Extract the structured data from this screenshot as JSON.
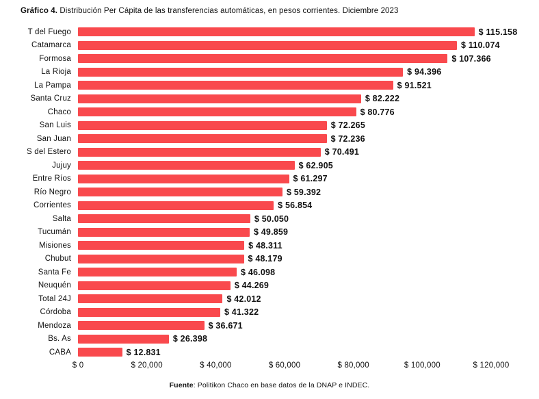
{
  "title": {
    "prefix": "Gráfico 4.",
    "rest": " Distribución Per Cápita de las transferencias automáticas, en pesos corrientes. Diciembre 2023"
  },
  "footer": {
    "prefix": "Fuente",
    "rest": ": Politikon Chaco en base datos de la DNAP e INDEC."
  },
  "colors": {
    "bar": "#f9494d",
    "text": "#111111"
  },
  "chart_data": {
    "type": "bar",
    "orientation": "horizontal",
    "title": "Gráfico 4. Distribución Per Cápita de las transferencias automáticas, en pesos corrientes. Diciembre 2023",
    "xlabel": "",
    "ylabel": "",
    "xlim": [
      0,
      120000
    ],
    "grid": false,
    "legend": false,
    "categories": [
      "T del Fuego",
      "Catamarca",
      "Formosa",
      "La Rioja",
      "La Pampa",
      "Santa Cruz",
      "Chaco",
      "San Luis",
      "San Juan",
      "S del Estero",
      "Jujuy",
      "Entre Ríos",
      "Río Negro",
      "Corrientes",
      "Salta",
      "Tucumán",
      "Misiones",
      "Chubut",
      "Santa Fe",
      "Neuquén",
      "Total 24J",
      "Córdoba",
      "Mendoza",
      "Bs. As",
      "CABA"
    ],
    "values": [
      115158,
      110074,
      107366,
      94396,
      91521,
      82222,
      80776,
      72265,
      72236,
      70491,
      62905,
      61297,
      59392,
      56854,
      50050,
      49859,
      48311,
      48179,
      46098,
      44269,
      42012,
      41322,
      36671,
      26398,
      12831
    ],
    "data_labels": [
      "$ 115.158",
      "$ 110.074",
      "$ 107.366",
      "$ 94.396",
      "$ 91.521",
      "$ 82.222",
      "$ 80.776",
      "$ 72.265",
      "$ 72.236",
      "$ 70.491",
      "$ 62.905",
      "$ 61.297",
      "$ 59.392",
      "$ 56.854",
      "$ 50.050",
      "$ 49.859",
      "$ 48.311",
      "$ 48.179",
      "$ 46.098",
      "$ 44.269",
      "$ 42.012",
      "$ 41.322",
      "$ 36.671",
      "$ 26.398",
      "$ 12.831"
    ],
    "x_tick_values": [
      0,
      20000,
      40000,
      60000,
      80000,
      100000,
      120000
    ],
    "x_tick_labels": [
      "$ 0",
      "$ 20,000",
      "$ 40,000",
      "$ 60,000",
      "$ 80,000",
      "$ 100,000",
      "$ 120,000"
    ]
  }
}
